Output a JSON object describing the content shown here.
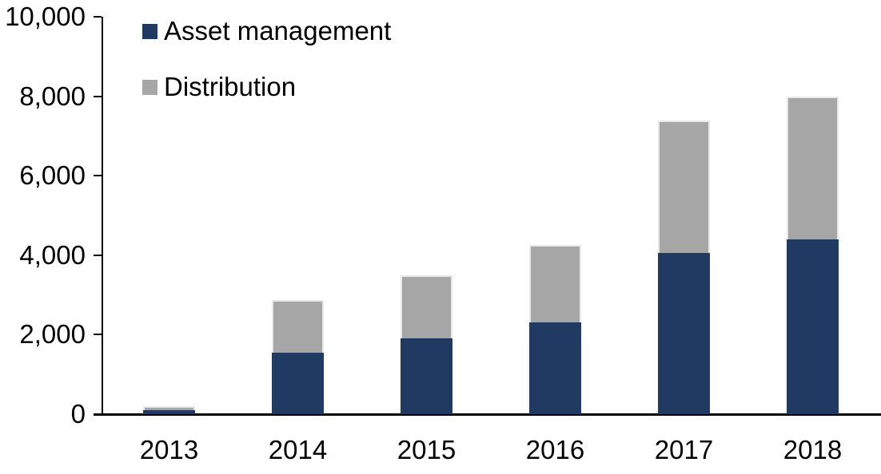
{
  "chart_data": {
    "type": "bar",
    "stacked": true,
    "title": "",
    "xlabel": "",
    "ylabel": "",
    "categories": [
      "2013",
      "2014",
      "2015",
      "2016",
      "2017",
      "2018"
    ],
    "series": [
      {
        "name": "Asset management",
        "color": "#213A61",
        "values": [
          100,
          1550,
          1900,
          2300,
          4050,
          4400
        ]
      },
      {
        "name": "Distribution",
        "color": "#A6A6A6",
        "values": [
          100,
          1320,
          1600,
          1950,
          3330,
          3600
        ]
      }
    ],
    "totals": [
      200,
      2870,
      3500,
      4250,
      7380,
      8000
    ],
    "ylim": [
      0,
      10000
    ],
    "ytick_interval": 2000,
    "ytick_labels": [
      "0",
      "2,000",
      "4,000",
      "6,000",
      "8,000",
      "10,000"
    ],
    "grid": false,
    "legend_position": "top-left",
    "axis_color": "#000000",
    "text_color": "#000000",
    "background_color": "#FFFFFF"
  }
}
